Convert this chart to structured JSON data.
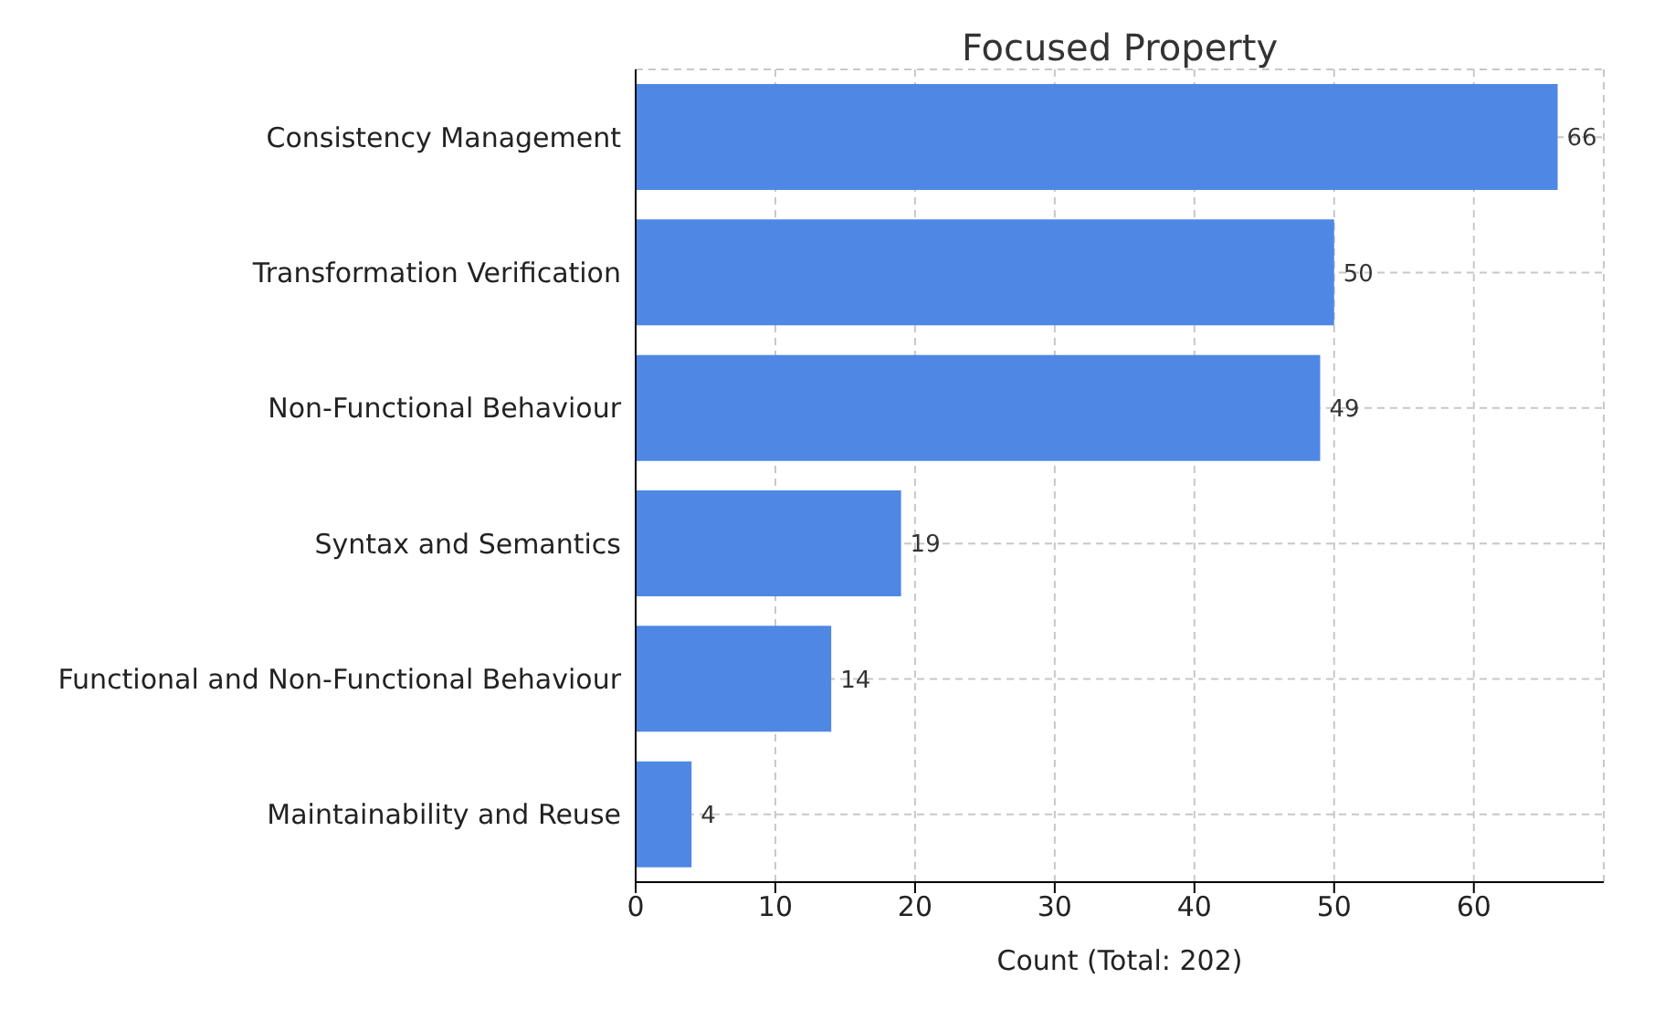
{
  "chart_data": {
    "type": "bar",
    "orientation": "horizontal",
    "title": "Focused Property",
    "xlabel": "Count (Total: 202)",
    "categories": [
      "Consistency Management",
      "Transformation Verification",
      "Non-Functional Behaviour",
      "Syntax and Semantics",
      "Functional and Non-Functional Behaviour",
      "Maintainability and Reuse"
    ],
    "values": [
      66,
      50,
      49,
      19,
      14,
      4
    ],
    "color": "#4f88e4",
    "xlim": [
      0,
      69.3
    ],
    "xticks": [
      0,
      10,
      20,
      30,
      40,
      50,
      60
    ],
    "grid": true,
    "data_labels": true
  }
}
